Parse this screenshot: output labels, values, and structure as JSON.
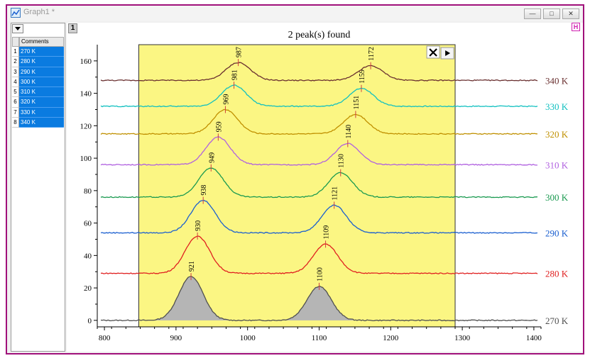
{
  "window": {
    "title": "Graph1 *",
    "min": "—",
    "restore": "□",
    "close": "✕"
  },
  "panel": {
    "column_header": "Comments",
    "rows": [
      "270 K",
      "280 K",
      "290 K",
      "300 K",
      "310 K",
      "320 K",
      "330 K",
      "340 K"
    ],
    "row_numbers": [
      "1",
      "2",
      "3",
      "4",
      "5",
      "6",
      "7",
      "8"
    ]
  },
  "layer_tab": "1",
  "h_button": "H",
  "chart_data": {
    "type": "line",
    "title": "2 peak(s) found",
    "xlim": [
      790,
      1410
    ],
    "ylim": [
      -4,
      170
    ],
    "x_ticks": [
      800,
      900,
      1000,
      1100,
      1200,
      1300,
      1400
    ],
    "y_ticks": [
      0,
      20,
      40,
      60,
      80,
      100,
      120,
      140,
      160
    ],
    "highlight_range": [
      848,
      1290
    ],
    "series": [
      {
        "name": "270 K",
        "baseline": 0,
        "peaks": [
          {
            "x": 921,
            "height": 27
          },
          {
            "x": 1100,
            "height": 21
          }
        ],
        "color": "#505050",
        "filled": true
      },
      {
        "name": "280 K",
        "baseline": 29,
        "peaks": [
          {
            "x": 930,
            "height": 23
          },
          {
            "x": 1109,
            "height": 18
          }
        ],
        "color": "#e02020"
      },
      {
        "name": "290 K",
        "baseline": 54,
        "peaks": [
          {
            "x": 938,
            "height": 20
          },
          {
            "x": 1121,
            "height": 17
          }
        ],
        "color": "#1a5fd0"
      },
      {
        "name": "300 K",
        "baseline": 76,
        "peaks": [
          {
            "x": 949,
            "height": 18
          },
          {
            "x": 1130,
            "height": 15
          }
        ],
        "color": "#1a9a50"
      },
      {
        "name": "310 K",
        "baseline": 96,
        "peaks": [
          {
            "x": 959,
            "height": 17
          },
          {
            "x": 1140,
            "height": 13
          }
        ],
        "color": "#b060e0"
      },
      {
        "name": "320 K",
        "baseline": 115,
        "peaks": [
          {
            "x": 969,
            "height": 15
          },
          {
            "x": 1151,
            "height": 12
          }
        ],
        "color": "#c09000"
      },
      {
        "name": "330 K",
        "baseline": 132,
        "peaks": [
          {
            "x": 981,
            "height": 13
          },
          {
            "x": 1159,
            "height": 11
          }
        ],
        "color": "#10c0c0"
      },
      {
        "name": "340 K",
        "baseline": 148,
        "peaks": [
          {
            "x": 987,
            "height": 11
          },
          {
            "x": 1172,
            "height": 9
          }
        ],
        "color": "#6a3030"
      }
    ]
  }
}
